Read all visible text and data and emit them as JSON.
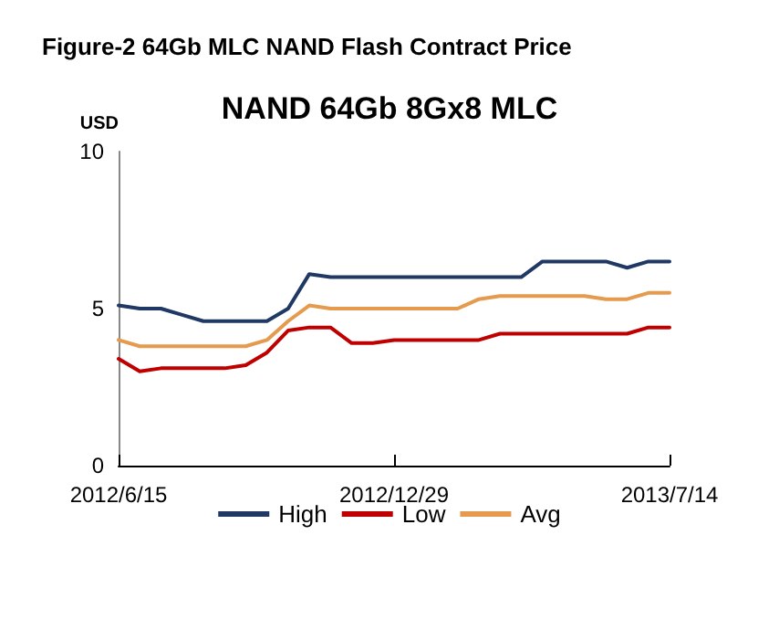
{
  "chart_data": {
    "type": "line",
    "title": "Figure-2 64Gb MLC NAND Flash Contract Price",
    "subtitle": "NAND 64Gb 8Gx8 MLC",
    "ylabel": "USD",
    "categories": [
      "2012/6/15",
      null,
      null,
      null,
      null,
      null,
      null,
      null,
      null,
      null,
      null,
      null,
      null,
      "2012/12/29",
      null,
      null,
      null,
      null,
      null,
      null,
      null,
      null,
      null,
      null,
      null,
      null,
      "2013/7/14"
    ],
    "series": [
      {
        "name": "High",
        "color": "#1f3864",
        "values": [
          5.1,
          5.0,
          5.0,
          4.8,
          4.6,
          4.6,
          4.6,
          4.6,
          5.0,
          6.1,
          6.0,
          6.0,
          6.0,
          6.0,
          6.0,
          6.0,
          6.0,
          6.0,
          6.0,
          6.0,
          6.5,
          6.5,
          6.5,
          6.5,
          6.3,
          6.5,
          6.5
        ]
      },
      {
        "name": "Low",
        "color": "#c00000",
        "values": [
          3.4,
          3.0,
          3.1,
          3.1,
          3.1,
          3.1,
          3.2,
          3.6,
          4.3,
          4.4,
          4.4,
          3.9,
          3.9,
          4.0,
          4.0,
          4.0,
          4.0,
          4.0,
          4.2,
          4.2,
          4.2,
          4.2,
          4.2,
          4.2,
          4.2,
          4.4,
          4.4
        ]
      },
      {
        "name": "Avg",
        "color": "#e59a4e",
        "values": [
          4.0,
          3.8,
          3.8,
          3.8,
          3.8,
          3.8,
          3.8,
          4.0,
          4.6,
          5.1,
          5.0,
          5.0,
          5.0,
          5.0,
          5.0,
          5.0,
          5.0,
          5.3,
          5.4,
          5.4,
          5.4,
          5.4,
          5.4,
          5.3,
          5.3,
          5.5,
          5.5
        ]
      }
    ],
    "ylim": [
      0,
      10
    ],
    "yticks": [
      0,
      5,
      10
    ],
    "grid": false,
    "legend": "bottom",
    "marker": "none",
    "line_style": "solid"
  }
}
